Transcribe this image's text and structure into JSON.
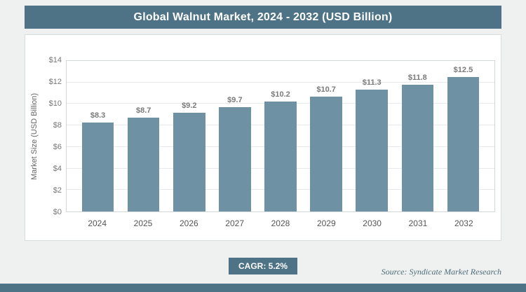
{
  "title": "Global Walnut Market, 2024 - 2032 (USD Billion)",
  "cagr_label": "CAGR: 5.2%",
  "source": "Source: Syndicate Market Research",
  "colors": {
    "header_bg": "#4e7286",
    "bar": "#6e92a4",
    "page_bg": "#eef1f0",
    "strip": "#4e7286"
  },
  "chart_data": {
    "type": "bar",
    "title": "Global Walnut Market, 2024 - 2032 (USD Billion)",
    "categories": [
      "2024",
      "2025",
      "2026",
      "2027",
      "2028",
      "2029",
      "2030",
      "2031",
      "2032"
    ],
    "values": [
      8.3,
      8.7,
      9.2,
      9.7,
      10.2,
      10.7,
      11.3,
      11.8,
      12.5
    ],
    "value_labels": [
      "$8.3",
      "$8.7",
      "$9.2",
      "$9.7",
      "$10.2",
      "$10.7",
      "$11.3",
      "$11.8",
      "$12.5"
    ],
    "xlabel": "",
    "ylabel": "Market Size (USD Billion)",
    "ylim": [
      0,
      14
    ],
    "yticks": [
      "$0",
      "$2",
      "$4",
      "$6",
      "$8",
      "$10",
      "$12",
      "$14"
    ],
    "grid": true,
    "legend": "none",
    "cagr": "5.2%"
  }
}
